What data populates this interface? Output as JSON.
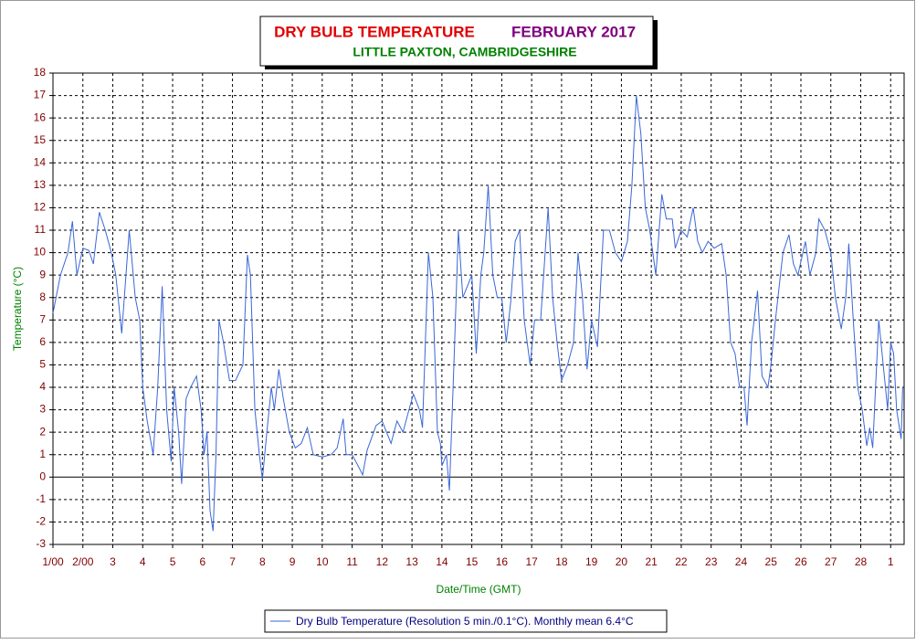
{
  "chart_data": {
    "type": "line",
    "title": "DRY BULB TEMPERATURE",
    "title_month": "FEBRUARY 2017",
    "subtitle": "LITTLE PAXTON, CAMBRIDGESHIRE",
    "ylabel": "Temperature (°C)",
    "xlabel": "Date/Time (GMT)",
    "xlim": [
      1,
      29.45
    ],
    "ylim": [
      -3,
      18
    ],
    "xticks": [
      {
        "value": 1,
        "label": "1/00"
      },
      {
        "value": 2,
        "label": "2/00"
      },
      3,
      4,
      5,
      6,
      7,
      8,
      9,
      10,
      11,
      12,
      13,
      14,
      15,
      16,
      17,
      18,
      19,
      20,
      21,
      22,
      23,
      24,
      25,
      26,
      27,
      28,
      {
        "value": 29,
        "label": "1"
      }
    ],
    "yticks": [
      -3,
      -2,
      -1,
      0,
      1,
      2,
      3,
      4,
      5,
      6,
      7,
      8,
      9,
      10,
      11,
      12,
      13,
      14,
      15,
      16,
      17,
      18
    ],
    "grid": true,
    "x": [
      1.0,
      1.25,
      1.5,
      1.65,
      1.8,
      2.0,
      2.2,
      2.35,
      2.55,
      2.75,
      2.95,
      3.1,
      3.3,
      3.55,
      3.75,
      3.9,
      4.0,
      4.15,
      4.35,
      4.5,
      4.65,
      4.8,
      4.95,
      5.05,
      5.2,
      5.3,
      5.45,
      5.6,
      5.8,
      5.95,
      6.05,
      6.15,
      6.25,
      6.35,
      6.45,
      6.55,
      6.7,
      6.9,
      7.1,
      7.35,
      7.5,
      7.6,
      7.75,
      7.9,
      8.0,
      8.15,
      8.3,
      8.4,
      8.55,
      8.7,
      8.9,
      9.1,
      9.3,
      9.5,
      9.7,
      10.0,
      10.3,
      10.5,
      10.7,
      10.8,
      11.0,
      11.2,
      11.35,
      11.5,
      11.8,
      12.0,
      12.3,
      12.5,
      12.7,
      12.9,
      13.05,
      13.25,
      13.35,
      13.55,
      13.7,
      13.85,
      13.95,
      14.0,
      14.15,
      14.25,
      14.4,
      14.55,
      14.7,
      14.85,
      15.0,
      15.15,
      15.3,
      15.4,
      15.55,
      15.7,
      15.85,
      16.0,
      16.15,
      16.3,
      16.45,
      16.6,
      16.75,
      16.95,
      17.1,
      17.3,
      17.55,
      17.7,
      17.85,
      18.0,
      18.2,
      18.4,
      18.55,
      18.7,
      18.85,
      19.0,
      19.2,
      19.4,
      19.6,
      19.8,
      20.0,
      20.2,
      20.35,
      20.5,
      20.65,
      20.8,
      20.95,
      21.15,
      21.35,
      21.5,
      21.7,
      21.8,
      22.0,
      22.2,
      22.4,
      22.55,
      22.7,
      22.9,
      23.1,
      23.35,
      23.5,
      23.65,
      23.8,
      23.95,
      24.1,
      24.2,
      24.35,
      24.55,
      24.7,
      24.9,
      25.0,
      25.15,
      25.4,
      25.6,
      25.75,
      25.9,
      26.15,
      26.3,
      26.5,
      26.6,
      26.8,
      27.0,
      27.15,
      27.35,
      27.5,
      27.6,
      27.75,
      27.9,
      28.05,
      28.2,
      28.3,
      28.4,
      28.6,
      28.75,
      28.9,
      29.0,
      29.1,
      29.2,
      29.35,
      29.4
    ],
    "series": [
      {
        "name": "Dry Bulb Temperature (Resolution 5 min./0.1°C). Monthly mean 6.4°C",
        "color": "#3a66d8",
        "values": [
          7.3,
          9,
          10,
          11.4,
          9,
          10.2,
          10.1,
          9.5,
          11.8,
          11,
          10,
          9,
          6.4,
          11,
          8,
          7,
          4,
          2.5,
          1,
          4,
          8.5,
          3,
          0.7,
          4,
          2,
          -0.3,
          3.5,
          4,
          4.5,
          3,
          1,
          2,
          -1.5,
          -2.4,
          1,
          7,
          6,
          4.3,
          4.3,
          5,
          9.9,
          9,
          3,
          1,
          -0.1,
          2,
          4,
          3,
          4.8,
          3.5,
          2,
          1.3,
          1.5,
          2.2,
          1,
          0.9,
          1,
          1.3,
          2.6,
          1,
          1,
          0.5,
          0.1,
          1.2,
          2.3,
          2.5,
          1.5,
          2.5,
          2,
          3,
          3.7,
          3,
          2.2,
          10,
          8,
          2,
          1.5,
          0.5,
          1,
          -0.6,
          5,
          11,
          8,
          8.5,
          9,
          5.5,
          9,
          10,
          13,
          9,
          8,
          8,
          6,
          7.8,
          10.5,
          11,
          7,
          5,
          7,
          7,
          12,
          8,
          6,
          4.3,
          5,
          6,
          10,
          8,
          4.8,
          7,
          5.8,
          11,
          11,
          10,
          9.6,
          10.5,
          13,
          17,
          15.3,
          12,
          11,
          9,
          12.6,
          11.5,
          11.5,
          10.2,
          11,
          10.7,
          12,
          10.5,
          10,
          10.5,
          10.2,
          10.4,
          9,
          6,
          5.5,
          4,
          4,
          2.3,
          6,
          8.3,
          4.5,
          4,
          5,
          7,
          10,
          10.8,
          9.5,
          9,
          10.5,
          9,
          10,
          11.5,
          11,
          10,
          8,
          6.6,
          8,
          10.4,
          7,
          4,
          3,
          1.4,
          2.2,
          1.3,
          7,
          5,
          3,
          6,
          5.5,
          3,
          1.7,
          4
        ]
      }
    ]
  }
}
